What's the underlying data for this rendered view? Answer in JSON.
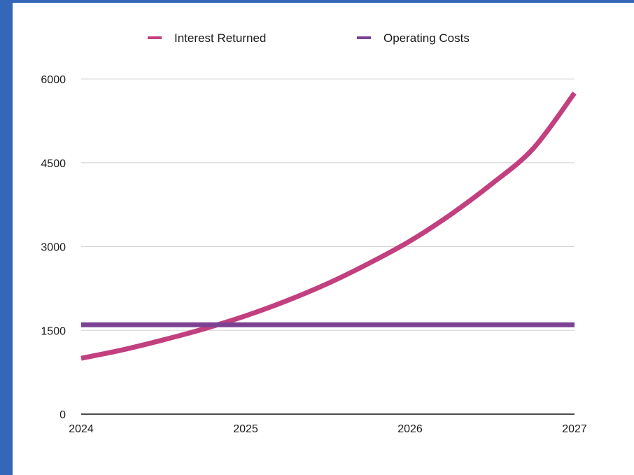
{
  "chart_data": {
    "type": "line",
    "title": "",
    "xlabel": "",
    "ylabel": "",
    "x_ticks": [
      "2024",
      "2025",
      "2026",
      "2027"
    ],
    "y_ticks": [
      "0",
      "1500",
      "3000",
      "4500",
      "6000"
    ],
    "xlim": [
      2024,
      2027
    ],
    "ylim": [
      0,
      6000
    ],
    "grid": "horizontal",
    "legend_position": "top",
    "series": [
      {
        "name": "Interest Returned",
        "color": "#c2407f",
        "x": [
          2024,
          2024.25,
          2024.5,
          2024.75,
          2025,
          2025.25,
          2025.5,
          2025.75,
          2026,
          2026.25,
          2026.5,
          2026.75,
          2027
        ],
        "y": [
          1000,
          1150,
          1330,
          1530,
          1760,
          2030,
          2340,
          2700,
          3100,
          3580,
          4130,
          4760,
          5750
        ]
      },
      {
        "name": "Operating Costs",
        "color": "#7b4293",
        "x": [
          2024,
          2027
        ],
        "y": [
          1600,
          1600
        ]
      }
    ]
  }
}
